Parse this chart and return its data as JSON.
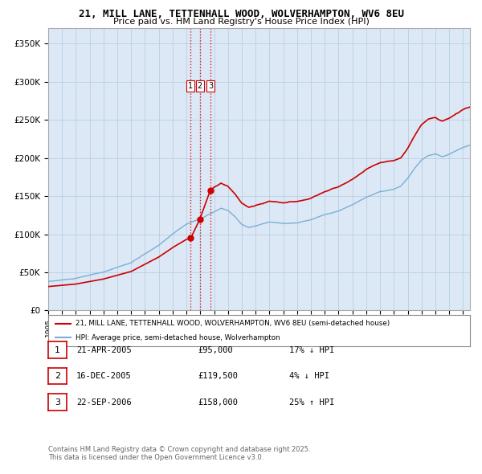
{
  "title": "21, MILL LANE, TETTENHALL WOOD, WOLVERHAMPTON, WV6 8EU",
  "subtitle": "Price paid vs. HM Land Registry's House Price Index (HPI)",
  "ylabel_ticks": [
    "£0",
    "£50K",
    "£100K",
    "£150K",
    "£200K",
    "£250K",
    "£300K",
    "£350K"
  ],
  "ytick_values": [
    0,
    50000,
    100000,
    150000,
    200000,
    250000,
    300000,
    350000
  ],
  "ylim": [
    0,
    370000
  ],
  "xlim_start": 1995.0,
  "xlim_end": 2025.5,
  "sale_dates": [
    2005.31,
    2005.96,
    2006.73
  ],
  "sale_prices": [
    95000,
    119500,
    158000
  ],
  "sale_labels": [
    "1",
    "2",
    "3"
  ],
  "vline_color": "#dd0000",
  "hpi_line_color": "#7bafd4",
  "price_line_color": "#cc0000",
  "chart_bg_color": "#dce8f5",
  "legend_label_price": "21, MILL LANE, TETTENHALL WOOD, WOLVERHAMPTON, WV6 8EU (semi-detached house)",
  "legend_label_hpi": "HPI: Average price, semi-detached house, Wolverhampton",
  "table_rows": [
    [
      "1",
      "21-APR-2005",
      "£95,000",
      "17% ↓ HPI"
    ],
    [
      "2",
      "16-DEC-2005",
      "£119,500",
      "4% ↓ HPI"
    ],
    [
      "3",
      "22-SEP-2006",
      "£158,000",
      "25% ↑ HPI"
    ]
  ],
  "footer_text": "Contains HM Land Registry data © Crown copyright and database right 2025.\nThis data is licensed under the Open Government Licence v3.0.",
  "background_color": "#ffffff",
  "grid_color": "#b8cfe0"
}
